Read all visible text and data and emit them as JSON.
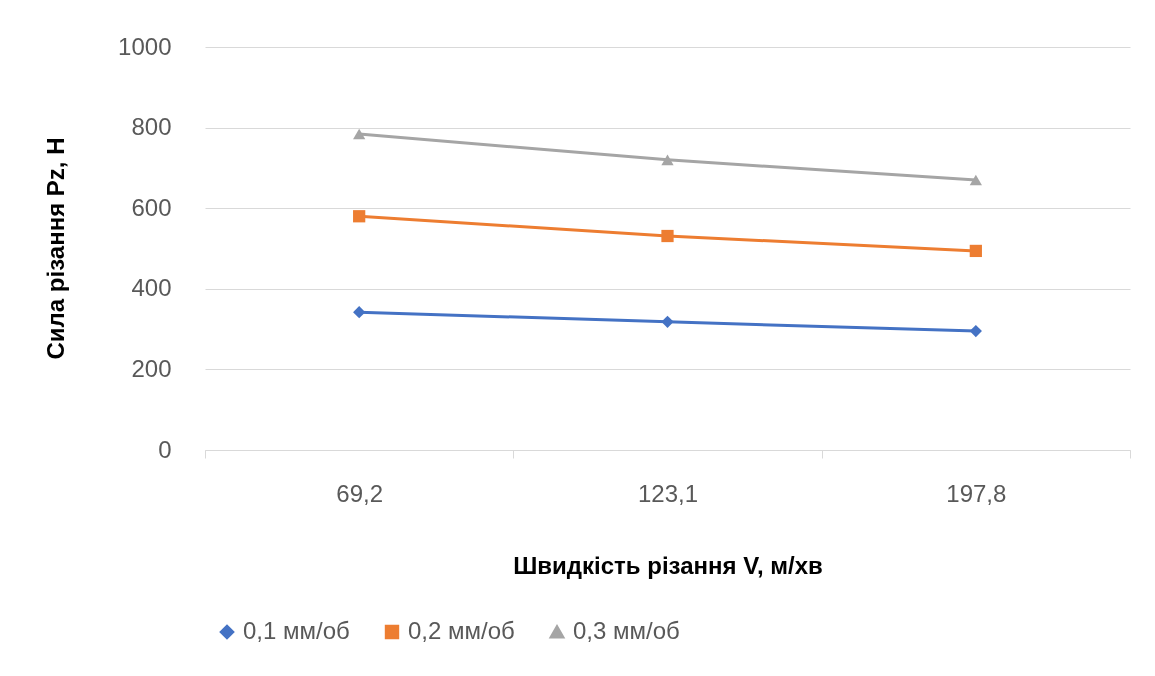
{
  "chart_data": {
    "type": "line",
    "xlabel": "Швидкість різання V, м/хв",
    "ylabel": "Сила різання Pz, Н",
    "categories": [
      "69,2",
      "123,1",
      "197,8"
    ],
    "series": [
      {
        "name": "0,1 мм/об",
        "color": "#4472c4",
        "marker": "diamond",
        "values": [
          342,
          318,
          295
        ]
      },
      {
        "name": "0,2 мм/об",
        "color": "#ed7d31",
        "marker": "square",
        "values": [
          580,
          531,
          494
        ]
      },
      {
        "name": "0,3 мм/об",
        "color": "#a5a5a5",
        "marker": "triangle",
        "values": [
          784,
          720,
          670
        ]
      }
    ],
    "ylim": [
      0,
      1000
    ],
    "yticks": [
      0,
      200,
      400,
      600,
      800,
      1000
    ],
    "grid": "y",
    "legend": "bottom",
    "line_style": "solid"
  }
}
